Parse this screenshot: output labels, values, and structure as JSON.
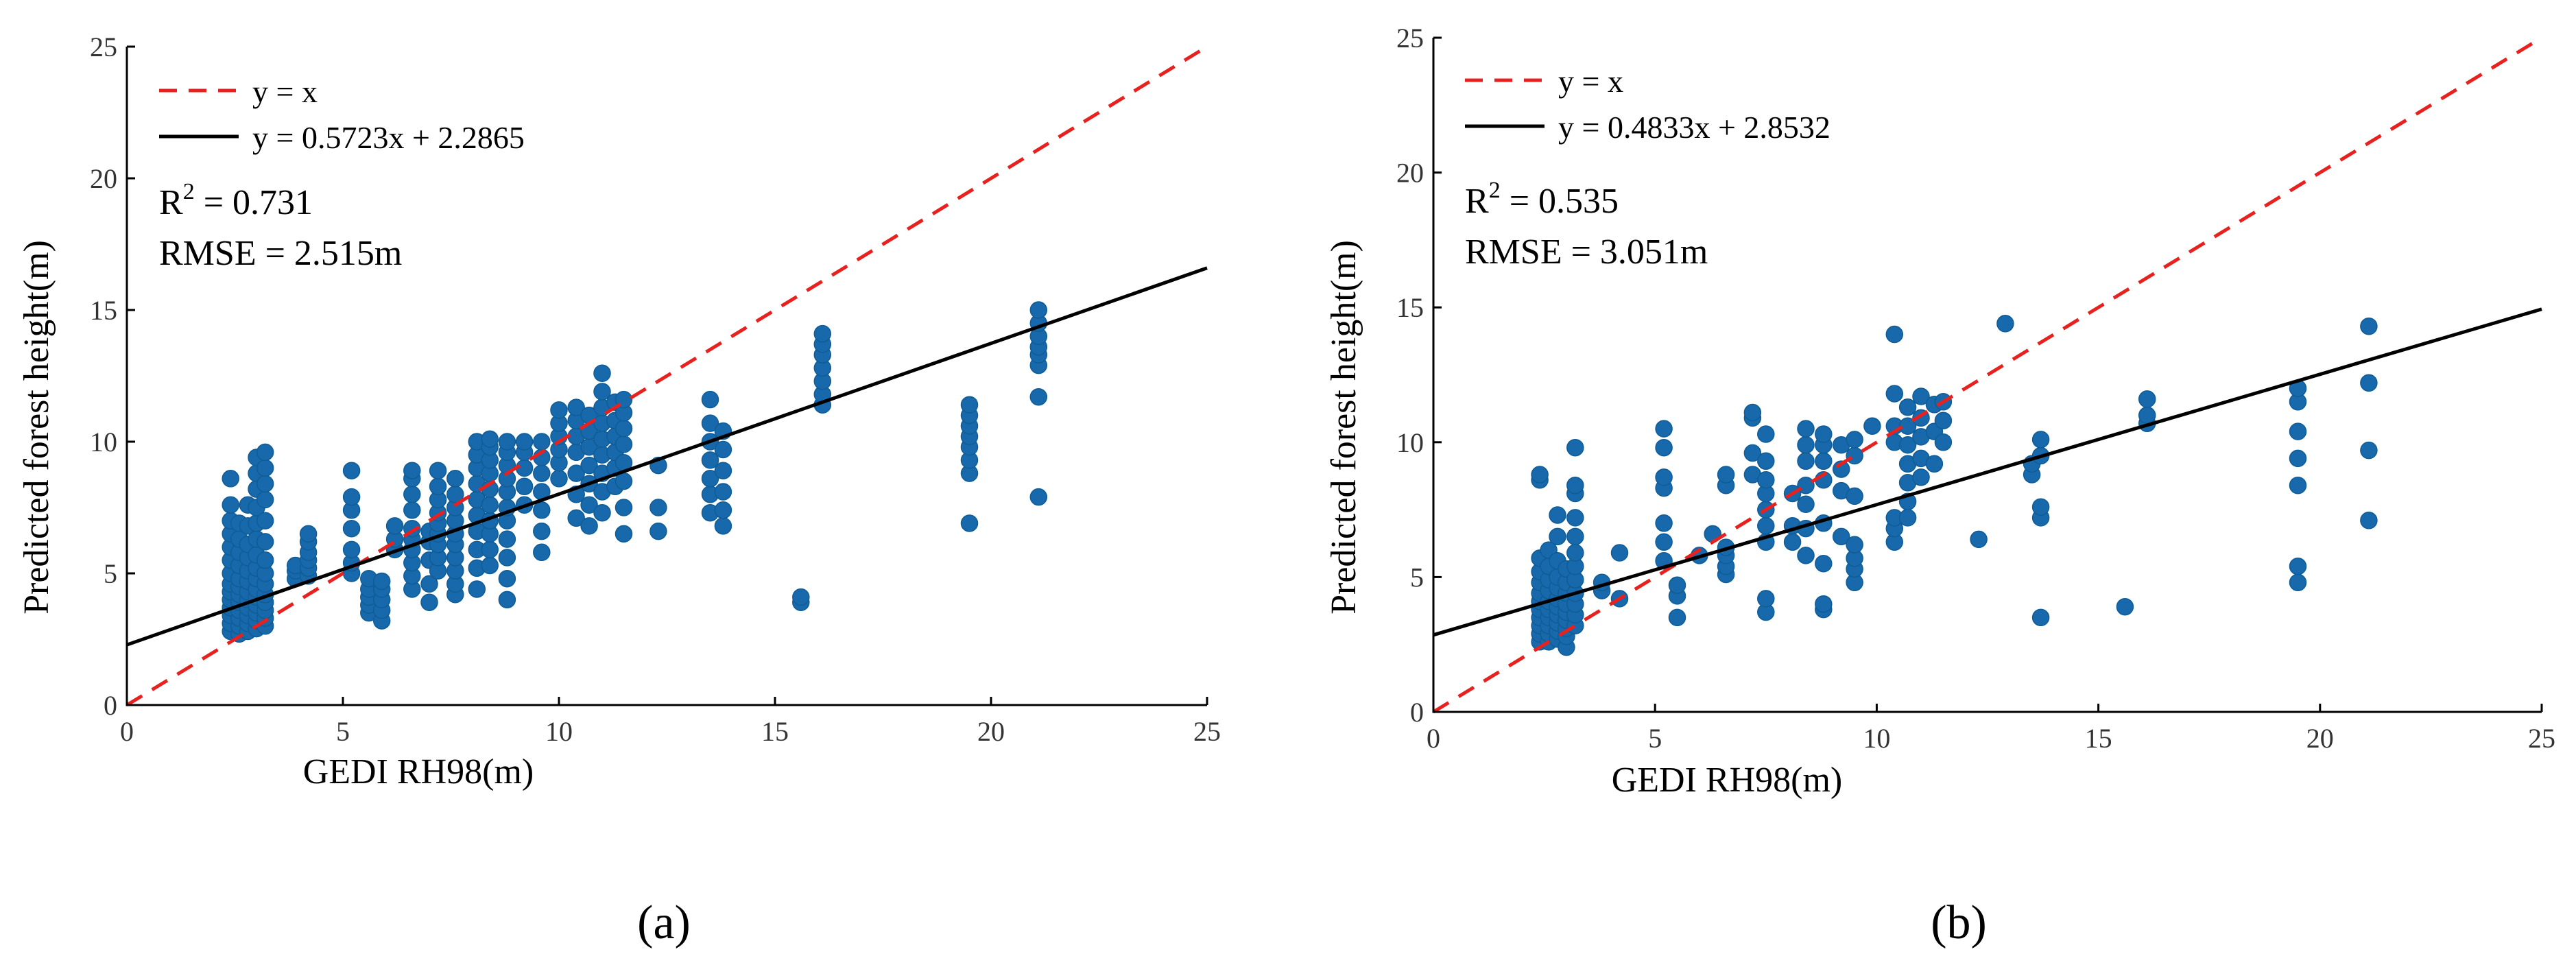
{
  "figure": {
    "panel_labels": [
      "(a)",
      "(b)"
    ]
  },
  "chart_data": [
    {
      "type": "scatter",
      "panel": "(a)",
      "xlabel": "GEDI RH98(m)",
      "ylabel": "Predicted forest height(m)",
      "xlim": [
        0,
        25
      ],
      "ylim": [
        0,
        25
      ],
      "xticks": [
        0,
        5,
        10,
        15,
        20,
        25
      ],
      "yticks": [
        0,
        5,
        10,
        15,
        20,
        25
      ],
      "grid": false,
      "legend_position": "top-left",
      "legend": [
        {
          "label": "y = x",
          "style": "dashed",
          "color": "#e8211e"
        },
        {
          "label": "y = 0.5723x + 2.2865",
          "style": "solid",
          "color": "#000000"
        }
      ],
      "annotations": {
        "r2_prefix": "R",
        "r2_sup": "2",
        "r2_value": " = 0.731",
        "rmse": "RMSE = 2.515m"
      },
      "lines": [
        {
          "name": "y = x",
          "slope": 1,
          "intercept": 0
        },
        {
          "name": "y = 0.5723x + 2.2865",
          "slope": 0.5723,
          "intercept": 2.2865
        }
      ],
      "point_color": "#1769ab",
      "columns": [
        {
          "x": 2.4,
          "y": [
            2.8,
            3.1,
            3.4,
            3.7,
            4.0,
            4.3,
            4.6,
            5.0,
            5.5,
            6.0,
            6.5,
            7.0,
            7.6,
            8.6
          ]
        },
        {
          "x": 2.6,
          "y": [
            2.7,
            3.0,
            3.3,
            3.6,
            3.9,
            4.2,
            4.5,
            4.8,
            5.3,
            5.8,
            6.3,
            6.9
          ]
        },
        {
          "x": 2.8,
          "y": [
            2.8,
            3.1,
            3.4,
            3.7,
            4.0,
            4.3,
            4.7,
            5.1,
            5.6,
            6.1,
            6.8,
            7.6
          ]
        },
        {
          "x": 3.0,
          "y": [
            2.9,
            3.2,
            3.5,
            3.8,
            4.1,
            4.4,
            4.8,
            5.2,
            5.7,
            6.3,
            6.9,
            7.5,
            8.2,
            8.8,
            9.4
          ]
        },
        {
          "x": 3.2,
          "y": [
            3.0,
            3.3,
            3.6,
            3.9,
            4.2,
            4.6,
            5.0,
            5.5,
            6.2,
            7.0,
            7.8,
            8.4,
            9.0,
            9.6
          ]
        },
        {
          "x": 3.9,
          "y": [
            4.8,
            5.1,
            5.3
          ]
        },
        {
          "x": 4.2,
          "y": [
            4.9,
            5.2,
            5.5,
            5.8,
            6.2,
            6.5
          ]
        },
        {
          "x": 5.2,
          "y": [
            5.0,
            5.4,
            5.9,
            6.7,
            7.4,
            7.9,
            8.9
          ]
        },
        {
          "x": 5.6,
          "y": [
            3.5,
            3.8,
            4.1,
            4.4,
            4.8
          ]
        },
        {
          "x": 5.9,
          "y": [
            3.2,
            3.6,
            4.0,
            4.4,
            4.7
          ]
        },
        {
          "x": 6.2,
          "y": [
            5.9,
            6.3,
            6.8
          ]
        },
        {
          "x": 6.6,
          "y": [
            4.4,
            4.9,
            5.4,
            5.9,
            6.3,
            6.7,
            7.4,
            8.0,
            8.6,
            8.9
          ]
        },
        {
          "x": 7.0,
          "y": [
            3.9,
            4.6,
            5.5,
            6.2,
            6.6
          ]
        },
        {
          "x": 7.2,
          "y": [
            5.1,
            5.6,
            6.1,
            6.5,
            6.9,
            7.3,
            7.8,
            8.3,
            8.9
          ]
        },
        {
          "x": 7.6,
          "y": [
            4.2,
            4.6,
            5.1,
            5.6,
            6.1,
            6.5,
            7.0,
            7.5,
            8.0,
            8.6
          ]
        },
        {
          "x": 8.1,
          "y": [
            4.4,
            5.2,
            5.9,
            6.6,
            7.2,
            7.8,
            8.4,
            9.0,
            9.5,
            10.0
          ]
        },
        {
          "x": 8.4,
          "y": [
            5.3,
            5.9,
            6.5,
            7.0,
            7.6,
            8.2,
            8.8,
            9.3,
            9.8,
            10.1
          ]
        },
        {
          "x": 8.8,
          "y": [
            4.0,
            4.8,
            5.6,
            6.3,
            7.0,
            7.5,
            8.1,
            8.6,
            9.1,
            9.6,
            10.0
          ]
        },
        {
          "x": 9.2,
          "y": [
            7.6,
            8.3,
            9.0,
            9.6,
            10.0
          ]
        },
        {
          "x": 9.6,
          "y": [
            5.8,
            6.6,
            7.4,
            8.1,
            8.8,
            9.4,
            10.0
          ]
        },
        {
          "x": 10.0,
          "y": [
            8.6,
            9.2,
            9.7,
            10.2,
            10.7,
            11.2
          ]
        },
        {
          "x": 10.4,
          "y": [
            7.1,
            8.0,
            8.8,
            9.6,
            10.2,
            10.8,
            11.3
          ]
        },
        {
          "x": 10.7,
          "y": [
            6.8,
            7.6,
            8.4,
            9.1,
            9.8,
            10.4,
            11.0
          ]
        },
        {
          "x": 11.0,
          "y": [
            7.3,
            8.1,
            8.8,
            9.5,
            10.1,
            10.7,
            11.3,
            11.9,
            12.6
          ]
        },
        {
          "x": 11.3,
          "y": [
            8.3,
            9.0,
            9.6,
            10.2,
            10.8,
            11.5
          ]
        },
        {
          "x": 11.5,
          "y": [
            6.5,
            7.5,
            8.5,
            9.2,
            9.9,
            10.5,
            11.1,
            11.6
          ]
        },
        {
          "x": 12.3,
          "y": [
            6.6,
            7.5,
            9.1
          ]
        },
        {
          "x": 13.5,
          "y": [
            7.3,
            8.0,
            8.6,
            9.3,
            10.0,
            10.7,
            11.6
          ]
        },
        {
          "x": 13.8,
          "y": [
            6.8,
            7.4,
            8.1,
            8.9,
            9.7,
            10.4
          ]
        },
        {
          "x": 15.6,
          "y": [
            3.9,
            4.1
          ]
        },
        {
          "x": 16.1,
          "y": [
            11.4,
            11.8,
            12.3,
            12.8,
            13.3,
            13.7,
            14.1
          ]
        },
        {
          "x": 19.5,
          "y": [
            6.9,
            8.8,
            9.3,
            9.8,
            10.2,
            10.6,
            11.0,
            11.4
          ]
        },
        {
          "x": 21.1,
          "y": [
            7.9,
            11.7,
            12.9,
            13.3,
            13.6,
            14.0,
            14.5,
            15.0
          ]
        }
      ]
    },
    {
      "type": "scatter",
      "panel": "(b)",
      "xlabel": "GEDI RH98(m)",
      "ylabel": "Predicted forest height(m)",
      "xlim": [
        0,
        25
      ],
      "ylim": [
        0,
        25
      ],
      "xticks": [
        0,
        5,
        10,
        15,
        20,
        25
      ],
      "yticks": [
        0,
        5,
        10,
        15,
        20,
        25
      ],
      "grid": false,
      "legend_position": "top-left",
      "legend": [
        {
          "label": "y = x",
          "style": "dashed",
          "color": "#e8211e"
        },
        {
          "label": "y = 0.4833x + 2.8532",
          "style": "solid",
          "color": "#000000"
        }
      ],
      "annotations": {
        "r2_prefix": "R",
        "r2_sup": "2",
        "r2_value": " = 0.535",
        "rmse": "RMSE = 3.051m"
      },
      "lines": [
        {
          "name": "y = x",
          "slope": 1,
          "intercept": 0
        },
        {
          "name": "y = 0.4833x + 2.8532",
          "slope": 0.4833,
          "intercept": 2.8532
        }
      ],
      "point_color": "#1769ab",
      "columns": [
        {
          "x": 2.4,
          "y": [
            2.6,
            2.9,
            3.2,
            3.5,
            3.8,
            4.1,
            4.4,
            4.8,
            5.2,
            5.7,
            8.6,
            8.8
          ]
        },
        {
          "x": 2.6,
          "y": [
            2.6,
            2.9,
            3.2,
            3.5,
            3.8,
            4.1,
            4.5,
            4.9,
            5.4,
            6.0
          ]
        },
        {
          "x": 2.8,
          "y": [
            2.7,
            3.0,
            3.3,
            3.6,
            3.9,
            4.2,
            4.6,
            5.0,
            5.6,
            6.5,
            7.3
          ]
        },
        {
          "x": 3.0,
          "y": [
            2.4,
            2.8,
            3.1,
            3.4,
            3.7,
            4.0,
            4.4,
            4.8,
            5.3
          ]
        },
        {
          "x": 3.2,
          "y": [
            3.2,
            3.6,
            4.0,
            4.4,
            4.9,
            5.4,
            5.9,
            6.5,
            7.2,
            8.1,
            8.4,
            9.8
          ]
        },
        {
          "x": 3.8,
          "y": [
            4.5,
            4.8
          ]
        },
        {
          "x": 4.2,
          "y": [
            4.2,
            5.9
          ]
        },
        {
          "x": 5.2,
          "y": [
            5.6,
            6.3,
            7.0,
            8.3,
            8.7,
            9.8,
            10.5
          ]
        },
        {
          "x": 5.5,
          "y": [
            3.5,
            4.3,
            4.7
          ]
        },
        {
          "x": 6.0,
          "y": [
            5.8
          ]
        },
        {
          "x": 6.3,
          "y": [
            6.6
          ]
        },
        {
          "x": 6.6,
          "y": [
            5.1,
            5.4,
            5.8,
            6.1,
            8.4,
            8.8
          ]
        },
        {
          "x": 7.2,
          "y": [
            8.8,
            9.6,
            10.9,
            11.1
          ]
        },
        {
          "x": 7.5,
          "y": [
            3.7,
            4.2,
            6.3,
            6.9,
            7.5,
            8.1,
            8.6,
            9.3,
            10.3
          ]
        },
        {
          "x": 8.1,
          "y": [
            6.3,
            6.9,
            8.1
          ]
        },
        {
          "x": 8.4,
          "y": [
            5.8,
            6.8,
            7.7,
            8.4,
            9.3,
            9.9,
            10.5
          ]
        },
        {
          "x": 8.8,
          "y": [
            3.8,
            4.0,
            5.5,
            7.0,
            8.6,
            9.3,
            9.9,
            10.3
          ]
        },
        {
          "x": 9.2,
          "y": [
            6.5,
            8.2,
            9.0,
            9.9
          ]
        },
        {
          "x": 9.5,
          "y": [
            4.8,
            5.3,
            5.7,
            6.2,
            8.0,
            9.5,
            10.1
          ]
        },
        {
          "x": 9.9,
          "y": [
            10.6
          ]
        },
        {
          "x": 10.4,
          "y": [
            6.3,
            6.8,
            7.2,
            10.0,
            10.6,
            11.8,
            14.0
          ]
        },
        {
          "x": 10.7,
          "y": [
            7.2,
            7.8,
            8.5,
            9.2,
            9.9,
            10.6,
            11.3
          ]
        },
        {
          "x": 11.0,
          "y": [
            8.7,
            9.4,
            10.2,
            10.9,
            11.7
          ]
        },
        {
          "x": 11.3,
          "y": [
            9.2,
            10.4,
            11.4
          ]
        },
        {
          "x": 11.5,
          "y": [
            10.0,
            10.8,
            11.5
          ]
        },
        {
          "x": 12.3,
          "y": [
            6.4
          ]
        },
        {
          "x": 12.9,
          "y": [
            14.4
          ]
        },
        {
          "x": 13.5,
          "y": [
            8.8,
            9.2
          ]
        },
        {
          "x": 13.7,
          "y": [
            3.5,
            7.2,
            7.6,
            9.5,
            10.1
          ]
        },
        {
          "x": 15.6,
          "y": [
            3.9
          ]
        },
        {
          "x": 16.1,
          "y": [
            10.7,
            11.0,
            11.6
          ]
        },
        {
          "x": 19.5,
          "y": [
            4.8,
            5.4,
            8.4,
            9.4,
            10.4,
            11.5,
            12.0
          ]
        },
        {
          "x": 21.1,
          "y": [
            7.1,
            9.7,
            12.2,
            14.3
          ]
        }
      ]
    }
  ]
}
